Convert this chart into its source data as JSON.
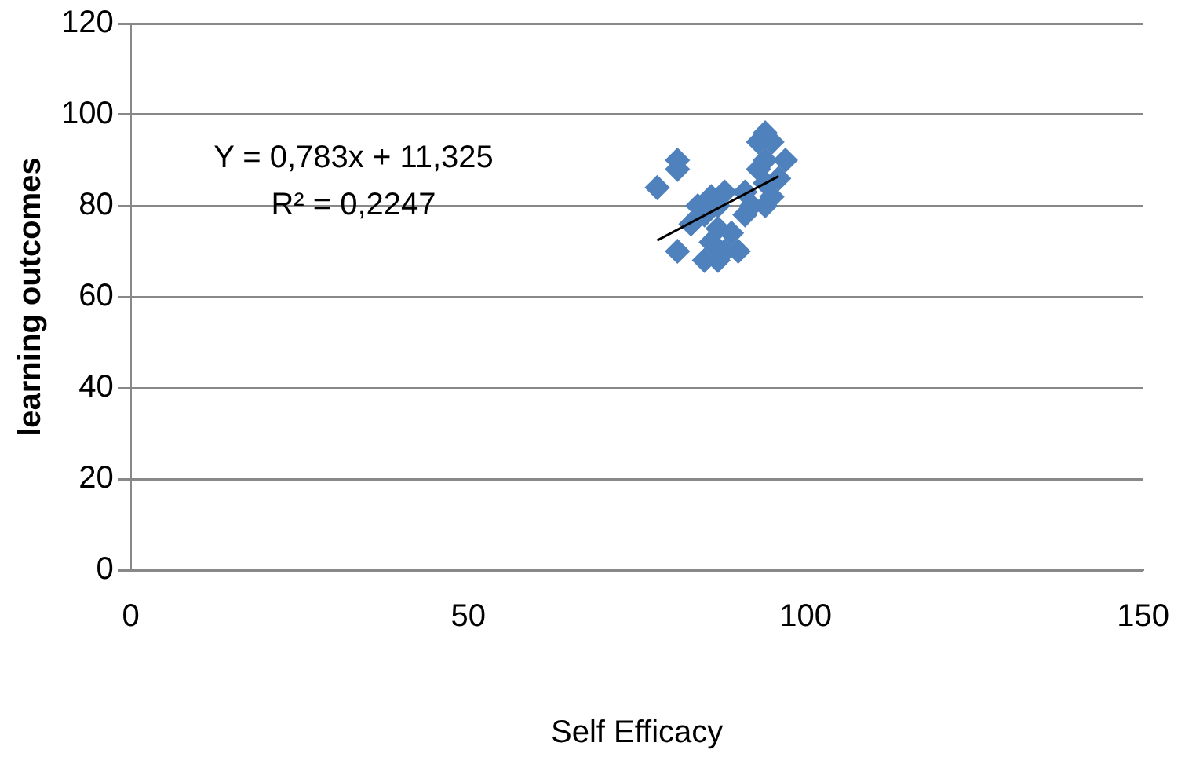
{
  "chart_data": {
    "type": "scatter",
    "xlabel": "Self Efficacy",
    "ylabel": "learning outcomes",
    "xlim": [
      0,
      150
    ],
    "xticks": [
      0,
      50,
      100,
      150
    ],
    "ylim": [
      0,
      120
    ],
    "yticks": [
      0,
      20,
      40,
      60,
      80,
      100,
      120
    ],
    "grid": "y",
    "legend": false,
    "marker": "diamond",
    "annotations": [
      "Y = 0,783x + 11,325",
      "R² = 0,2247"
    ],
    "series": [
      {
        "color": "#4f81bd",
        "x": [
          78,
          81,
          81,
          81,
          83,
          84,
          85,
          86,
          87,
          88,
          85,
          87,
          86,
          88,
          90,
          87,
          89,
          91,
          92,
          94,
          95,
          93,
          94,
          93,
          94,
          95,
          96,
          97,
          94,
          91
        ],
        "values": [
          84,
          90,
          88,
          70,
          76,
          80,
          78,
          82,
          80,
          83,
          68,
          68,
          72,
          70,
          70,
          75,
          74,
          78,
          80,
          80,
          82,
          88,
          90,
          94,
          96,
          94,
          86,
          90,
          85,
          83
        ]
      },
      {
        "type": "line",
        "color": "#000000",
        "marker": "none",
        "x": [
          78,
          96
        ],
        "values": [
          72.4,
          86.5
        ]
      }
    ]
  }
}
